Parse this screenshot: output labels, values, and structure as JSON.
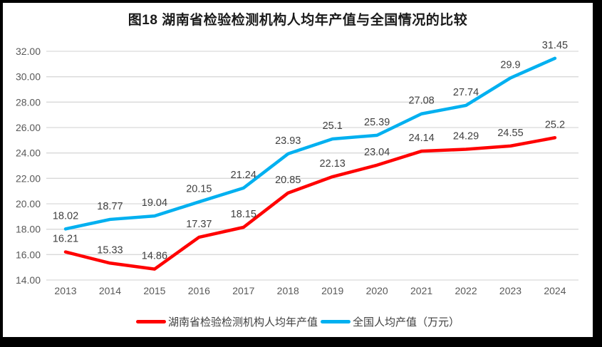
{
  "chart_data": {
    "type": "line",
    "title": "图18 湖南省检验检测机构人均年产值与全国情况的比较",
    "categories": [
      "2013",
      "2014",
      "2015",
      "2016",
      "2017",
      "2018",
      "2019",
      "2020",
      "2021",
      "2022",
      "2023",
      "2024"
    ],
    "series": [
      {
        "name": "湖南省检验检测机构人均年产值",
        "color": "#FF0000",
        "values": [
          16.21,
          15.33,
          14.86,
          17.37,
          18.15,
          20.85,
          22.13,
          23.04,
          24.14,
          24.29,
          24.55,
          25.2
        ]
      },
      {
        "name": "全国人均产值（万元）",
        "color": "#00B0F0",
        "values": [
          18.02,
          18.77,
          19.04,
          20.15,
          21.24,
          23.93,
          25.1,
          25.39,
          27.08,
          27.74,
          29.9,
          31.45
        ]
      }
    ],
    "xlabel": "",
    "ylabel": "",
    "ylim": [
      14,
      32
    ],
    "ytick_step": 2,
    "ytick_labels": [
      "14.00",
      "16.00",
      "18.00",
      "20.00",
      "22.00",
      "24.00",
      "26.00",
      "28.00",
      "30.00",
      "32.00"
    ],
    "grid": "horizontal",
    "legend_position": "bottom",
    "data_labels": "on",
    "colors": {
      "gridline": "#D9D9D9",
      "tick_text": "#595959",
      "data_label_text": "#404040",
      "title_text": "#1a1a1a",
      "chart_background": "#FFFFFF",
      "frame_border": "#000000"
    }
  }
}
